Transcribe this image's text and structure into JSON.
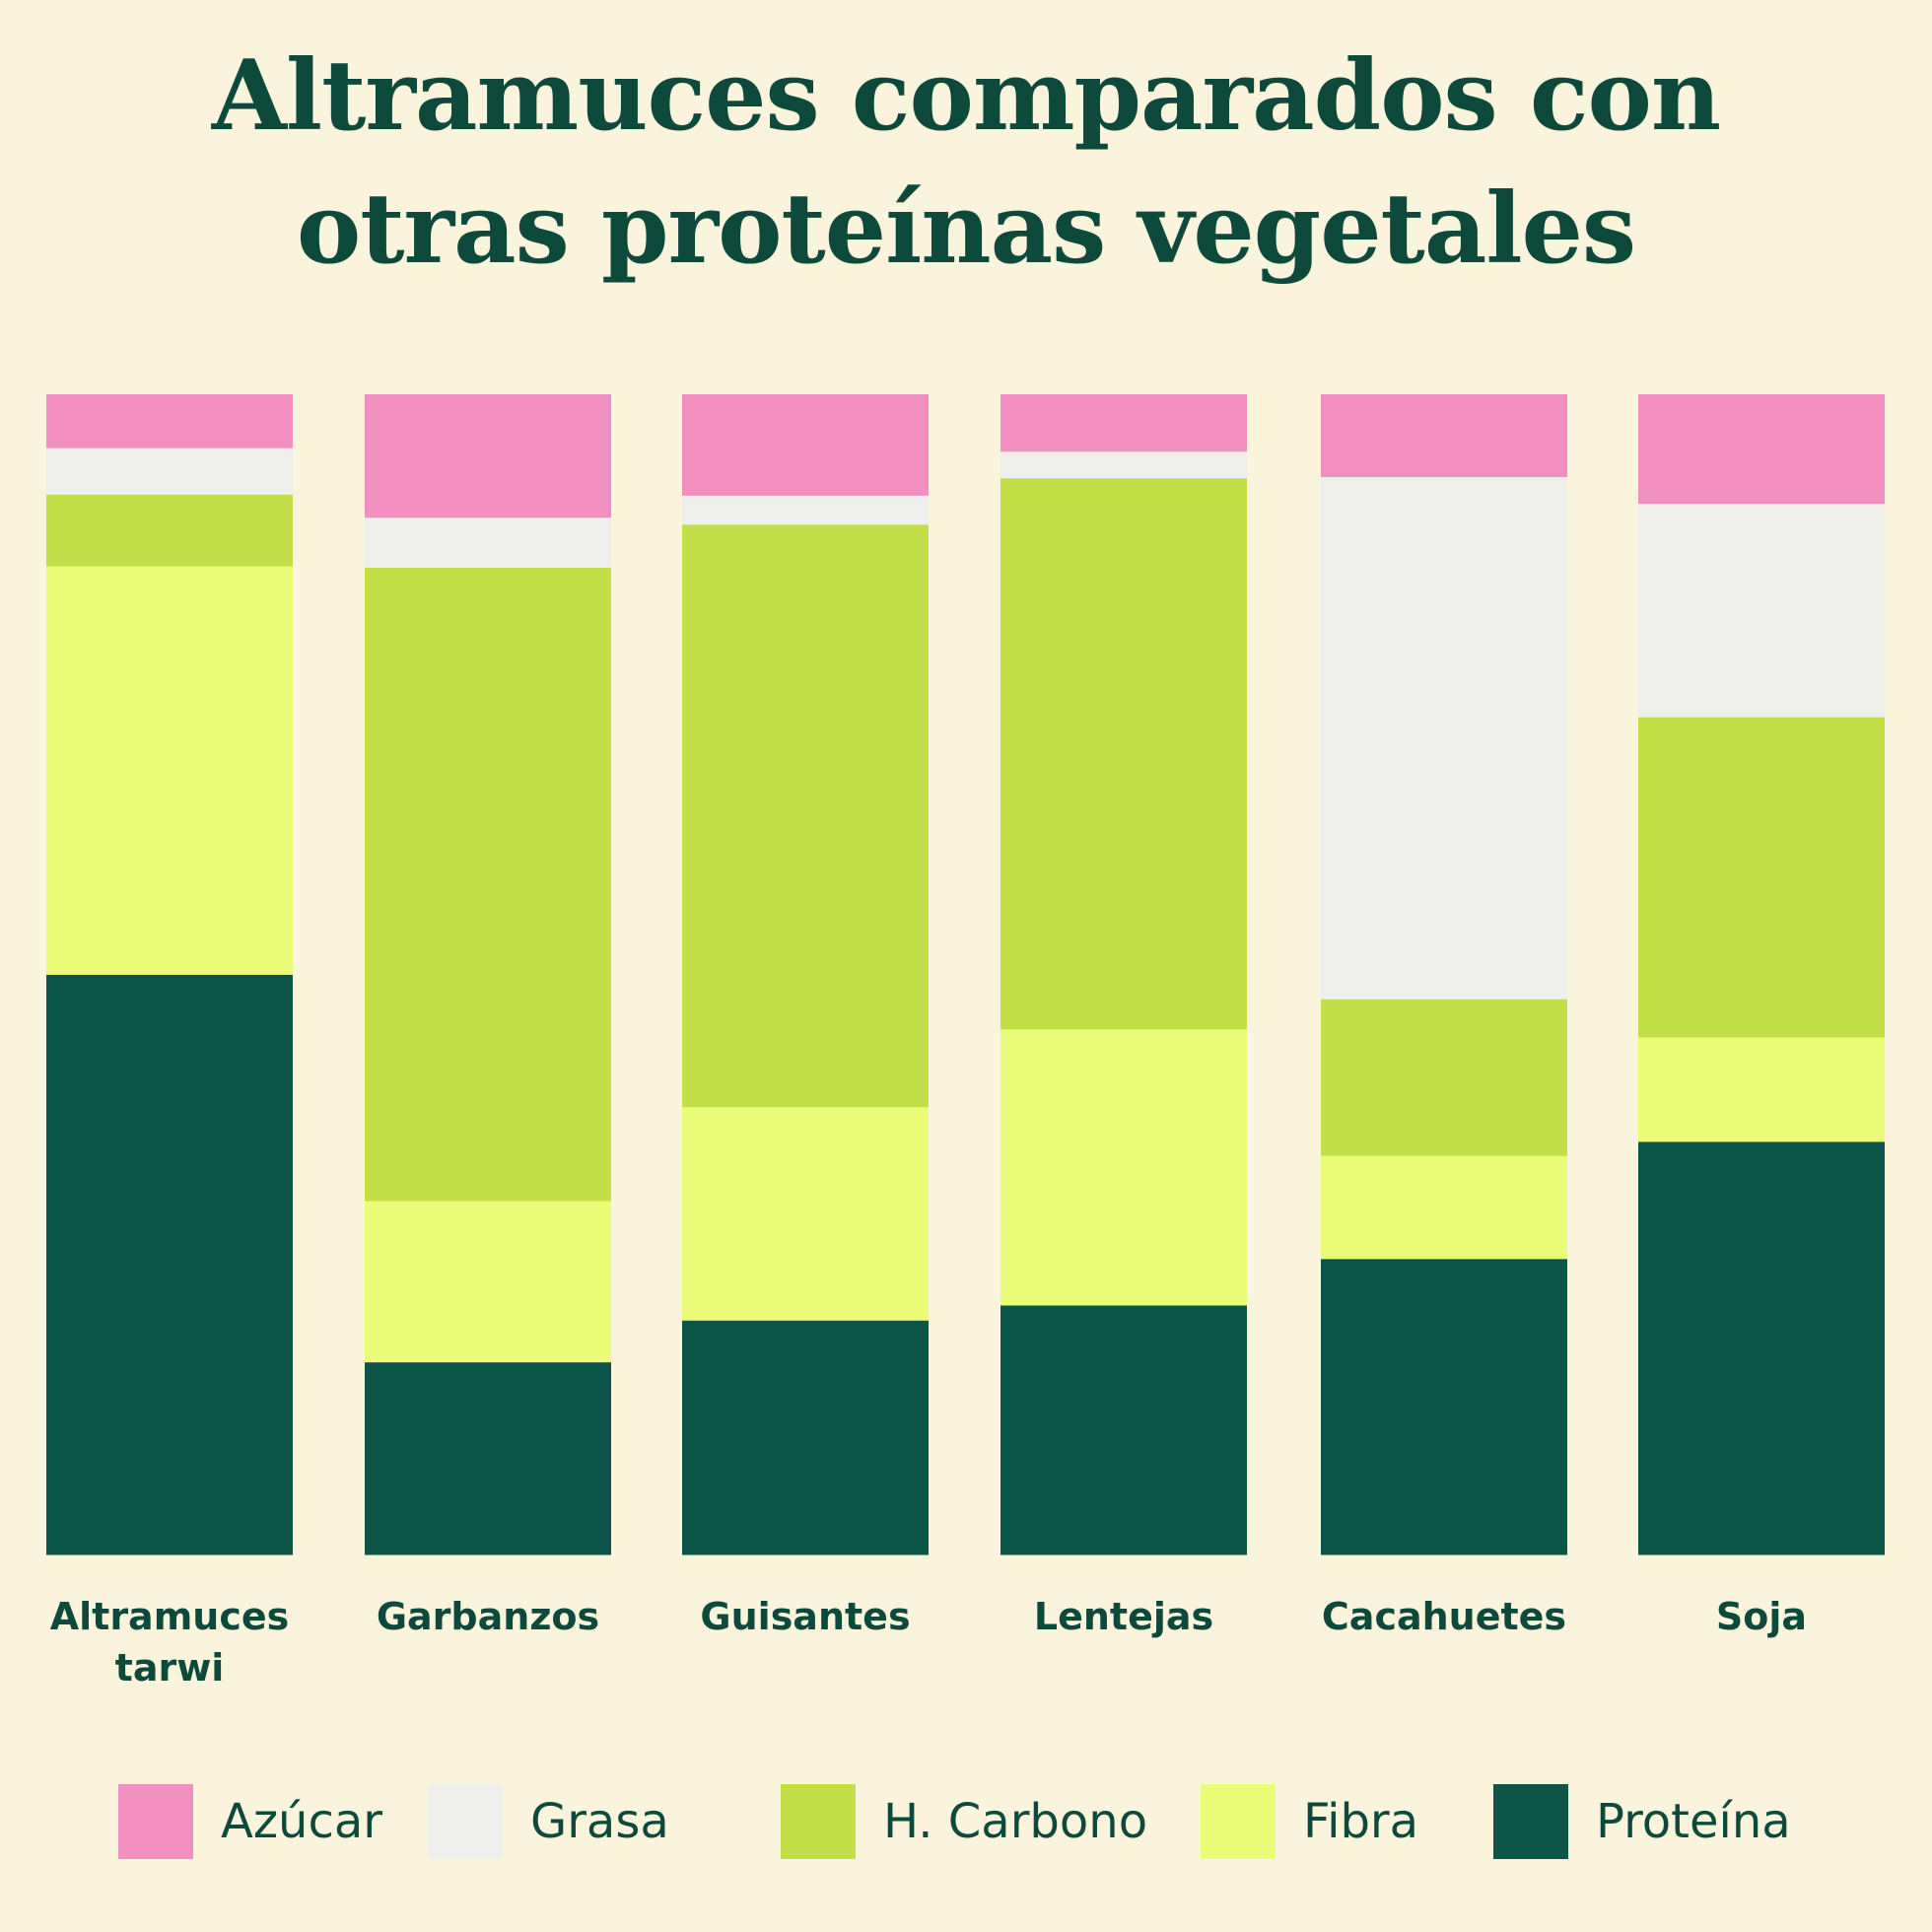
{
  "title": {
    "line1": "Altramuces comparados con",
    "line2": "otras proteínas vegetales"
  },
  "chart_data": {
    "type": "bar",
    "stacked": true,
    "normalized": true,
    "categories": [
      [
        "Altramuces",
        "tarwi"
      ],
      [
        "Garbanzos"
      ],
      [
        "Guisantes"
      ],
      [
        "Lentejas"
      ],
      [
        "Cacahuetes"
      ],
      [
        "Soja"
      ]
    ],
    "series": [
      {
        "name": "Proteína",
        "color": "#0e5549",
        "values": [
          50.0,
          16.6,
          20.2,
          21.5,
          25.5,
          35.6
        ]
      },
      {
        "name": "Fibra",
        "color": "#ebfd78",
        "values": [
          35.2,
          13.9,
          18.4,
          23.8,
          8.9,
          9.0
        ]
      },
      {
        "name": "H. Carbono",
        "color": "#c2df48",
        "values": [
          6.2,
          54.6,
          50.2,
          47.5,
          13.5,
          27.6
        ]
      },
      {
        "name": "Grasa",
        "color": "#efefec",
        "values": [
          4.0,
          4.3,
          2.5,
          2.3,
          45.0,
          18.4
        ]
      },
      {
        "name": "Azúcar",
        "color": "#f190c0",
        "values": [
          4.6,
          10.6,
          8.7,
          4.9,
          7.1,
          9.4
        ]
      }
    ],
    "legend_order": [
      "Azúcar",
      "Grasa",
      "H. Carbono",
      "Fibra",
      "Proteína"
    ],
    "ylim": [
      0,
      100
    ],
    "legend_position": "bottom",
    "grid": false,
    "xlabel": "",
    "ylabel": ""
  }
}
